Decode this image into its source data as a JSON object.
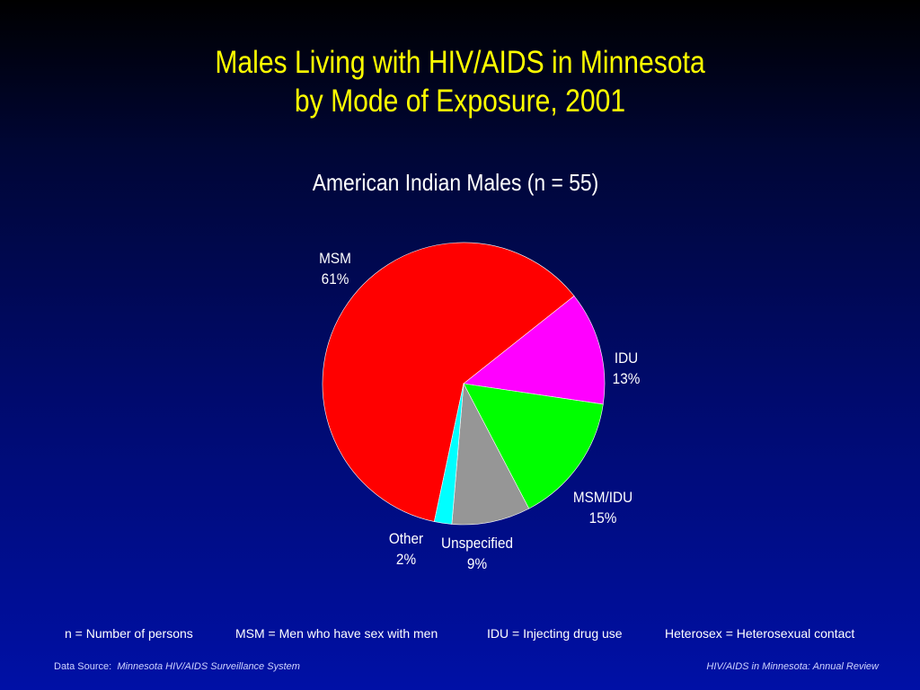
{
  "title_line1": "Males Living with HIV/AIDS in Minnesota",
  "title_line2": "by Mode of Exposure, 2001",
  "chart_data": {
    "type": "pie",
    "title": "American Indian Males (n = 55)",
    "slices": [
      {
        "label": "MSM",
        "value": 61,
        "display": "61%",
        "color": "#ff0000"
      },
      {
        "label": "IDU",
        "value": 13,
        "display": "13%",
        "color": "#ff00ff"
      },
      {
        "label": "MSM/IDU",
        "value": 15,
        "display": "15%",
        "color": "#00ff00"
      },
      {
        "label": "Unspecified",
        "value": 9,
        "display": "9%",
        "color": "#969696"
      },
      {
        "label": "Other",
        "value": 2,
        "display": "2%",
        "color": "#00ffff"
      }
    ]
  },
  "footnotes": {
    "n": "n = Number of persons",
    "msm": "MSM = Men who have sex with men",
    "idu": "IDU = Injecting drug use",
    "heterosex": "Heterosex = Heterosexual contact"
  },
  "source": {
    "prefix": "Data Source:",
    "name": "Minnesota HIV/AIDS Surveillance System"
  },
  "review": "HIV/AIDS in Minnesota: Annual Review"
}
